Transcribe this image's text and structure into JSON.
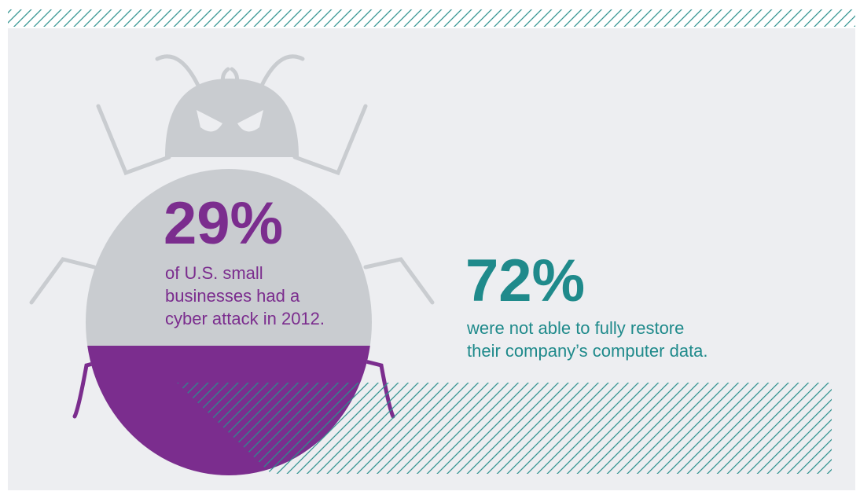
{
  "stats": [
    {
      "value": "29%",
      "description": [
        "of U.S. small",
        "businesses had a",
        "cyber attack in 2012."
      ]
    },
    {
      "value": "72%",
      "description": [
        "were not able to fully restore",
        "their company’s computer data."
      ]
    }
  ]
}
